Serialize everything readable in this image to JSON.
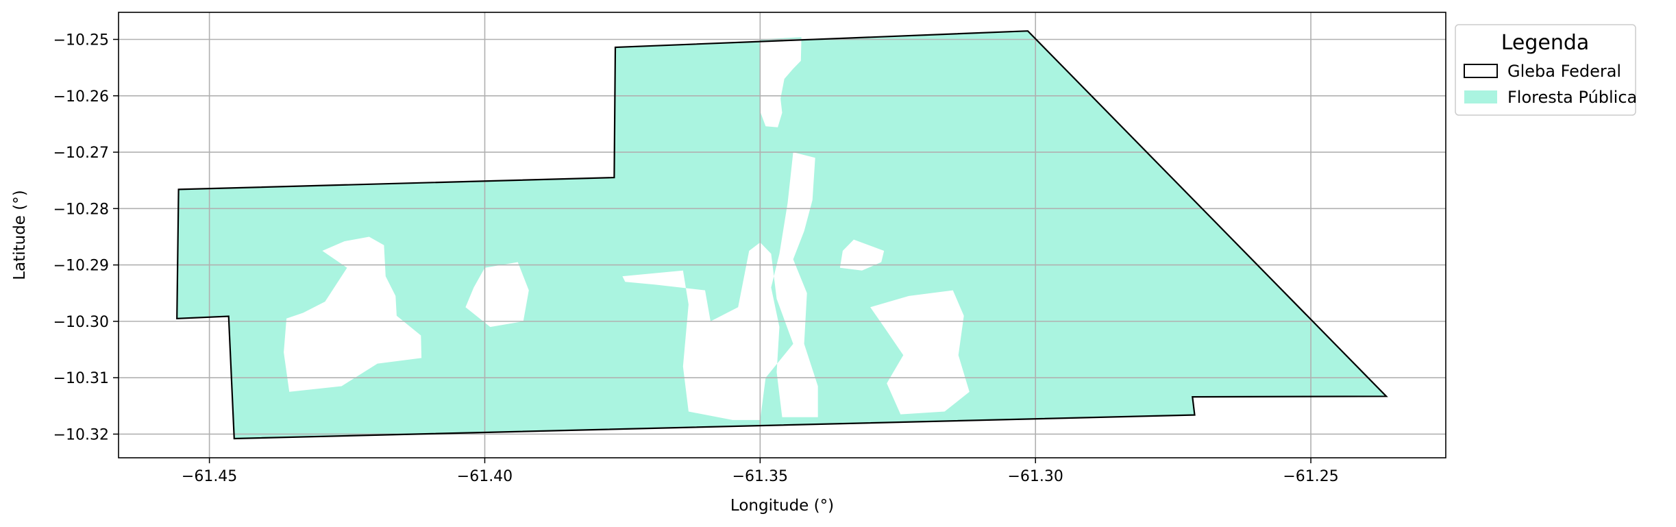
{
  "chart_data": {
    "type": "map",
    "xlabel": "Longitude (°)",
    "ylabel": "Latitude (°)",
    "xlim": [
      -61.4665,
      -61.2255
    ],
    "ylim": [
      -10.3242,
      -10.2452
    ],
    "xticks": [
      -61.45,
      -61.4,
      -61.35,
      -61.3,
      -61.25
    ],
    "xtick_labels": [
      "−61.45",
      "−61.40",
      "−61.35",
      "−61.30",
      "−61.25"
    ],
    "yticks": [
      -10.25,
      -10.26,
      -10.27,
      -10.28,
      -10.29,
      -10.3,
      -10.31,
      -10.32
    ],
    "ytick_labels": [
      "−10.25",
      "−10.26",
      "−10.27",
      "−10.28",
      "−10.29",
      "−10.30",
      "−10.31",
      "−10.32"
    ],
    "grid": true,
    "legend": {
      "title": "Legenda",
      "placement": "outside-top-right",
      "items": [
        {
          "label": "Gleba Federal",
          "style": "outline",
          "edge_color": "#000000",
          "fill": "none"
        },
        {
          "label": "Floresta Pública",
          "style": "fill",
          "fill": "#aaf4e0"
        }
      ]
    },
    "layers": {
      "gleba_federal": {
        "name": "Gleba Federal",
        "edge_color": "#000000",
        "polygon": [
          [
            -61.4556,
            -10.2766
          ],
          [
            -61.3765,
            -10.2745
          ],
          [
            -61.3763,
            -10.2514
          ],
          [
            -61.3014,
            -10.2485
          ],
          [
            -61.2363,
            -10.3133
          ],
          [
            -61.2715,
            -10.3134
          ],
          [
            -61.2711,
            -10.3166
          ],
          [
            -61.4455,
            -10.3208
          ],
          [
            -61.4465,
            -10.2991
          ],
          [
            -61.4559,
            -10.2995
          ]
        ]
      },
      "floresta_publica": {
        "name": "Floresta Pública",
        "fill": "#aaf4e0",
        "polygon": [
          [
            -61.4556,
            -10.2766
          ],
          [
            -61.3765,
            -10.2745
          ],
          [
            -61.3763,
            -10.2514
          ],
          [
            -61.3014,
            -10.2485
          ],
          [
            -61.2363,
            -10.3133
          ],
          [
            -61.2715,
            -10.3134
          ],
          [
            -61.2711,
            -10.3166
          ],
          [
            -61.4455,
            -10.3208
          ],
          [
            -61.4465,
            -10.2991
          ],
          [
            -61.4559,
            -10.2995
          ]
        ],
        "holes": [
          [
            [
              -61.35,
              -10.25
            ],
            [
              -61.3425,
              -10.2496
            ],
            [
              -61.3426,
              -10.2538
            ],
            [
              -61.344,
              -10.2552
            ],
            [
              -61.3456,
              -10.257
            ],
            [
              -61.3463,
              -10.2605
            ],
            [
              -61.346,
              -10.263
            ],
            [
              -61.3468,
              -10.2656
            ],
            [
              -61.349,
              -10.2654
            ],
            [
              -61.35,
              -10.2628
            ]
          ],
          [
            [
              -61.4255,
              -10.2858
            ],
            [
              -61.421,
              -10.285
            ],
            [
              -61.4183,
              -10.2865
            ],
            [
              -61.418,
              -10.292
            ],
            [
              -61.4162,
              -10.2955
            ],
            [
              -61.416,
              -10.299
            ],
            [
              -61.4116,
              -10.3025
            ],
            [
              -61.4115,
              -10.3065
            ],
            [
              -61.4195,
              -10.3075
            ],
            [
              -61.426,
              -10.3115
            ],
            [
              -61.4355,
              -10.3125
            ],
            [
              -61.4365,
              -10.3055
            ],
            [
              -61.436,
              -10.2995
            ],
            [
              -61.433,
              -10.2985
            ],
            [
              -61.429,
              -10.2965
            ],
            [
              -61.425,
              -10.2905
            ],
            [
              -61.4295,
              -10.2875
            ]
          ],
          [
            [
              -61.4,
              -10.2905
            ],
            [
              -61.394,
              -10.2895
            ],
            [
              -61.392,
              -10.2945
            ],
            [
              -61.393,
              -10.3
            ],
            [
              -61.399,
              -10.301
            ],
            [
              -61.4035,
              -10.2975
            ],
            [
              -61.402,
              -10.294
            ]
          ],
          [
            [
              -61.375,
              -10.292
            ],
            [
              -61.364,
              -10.291
            ],
            [
              -61.363,
              -10.297
            ],
            [
              -61.364,
              -10.308
            ],
            [
              -61.363,
              -10.316
            ],
            [
              -61.355,
              -10.3175
            ],
            [
              -61.35,
              -10.3175
            ],
            [
              -61.349,
              -10.31
            ],
            [
              -61.344,
              -10.304
            ],
            [
              -61.347,
              -10.296
            ],
            [
              -61.348,
              -10.288
            ],
            [
              -61.35,
              -10.286
            ],
            [
              -61.352,
              -10.2875
            ],
            [
              -61.354,
              -10.2975
            ],
            [
              -61.359,
              -10.3
            ],
            [
              -61.36,
              -10.2945
            ],
            [
              -61.369,
              -10.2935
            ],
            [
              -61.3745,
              -10.293
            ]
          ],
          [
            [
              -61.344,
              -10.27
            ],
            [
              -61.34,
              -10.271
            ],
            [
              -61.3405,
              -10.2785
            ],
            [
              -61.342,
              -10.284
            ],
            [
              -61.344,
              -10.289
            ],
            [
              -61.3415,
              -10.295
            ],
            [
              -61.342,
              -10.304
            ],
            [
              -61.3395,
              -10.3115
            ],
            [
              -61.3395,
              -10.317
            ],
            [
              -61.346,
              -10.317
            ],
            [
              -61.347,
              -10.309
            ],
            [
              -61.3465,
              -10.301
            ],
            [
              -61.348,
              -10.294
            ],
            [
              -61.3465,
              -10.288
            ],
            [
              -61.345,
              -10.279
            ]
          ],
          [
            [
              -61.333,
              -10.2855
            ],
            [
              -61.3275,
              -10.2875
            ],
            [
              -61.328,
              -10.2895
            ],
            [
              -61.3315,
              -10.291
            ],
            [
              -61.3355,
              -10.2905
            ],
            [
              -61.335,
              -10.2875
            ]
          ],
          [
            [
              -61.323,
              -10.2955
            ],
            [
              -61.315,
              -10.2945
            ],
            [
              -61.313,
              -10.299
            ],
            [
              -61.314,
              -10.306
            ],
            [
              -61.312,
              -10.3125
            ],
            [
              -61.3165,
              -10.316
            ],
            [
              -61.3245,
              -10.3165
            ],
            [
              -61.327,
              -10.311
            ],
            [
              -61.324,
              -10.306
            ],
            [
              -61.3275,
              -10.301
            ],
            [
              -61.33,
              -10.2975
            ]
          ]
        ]
      }
    }
  }
}
